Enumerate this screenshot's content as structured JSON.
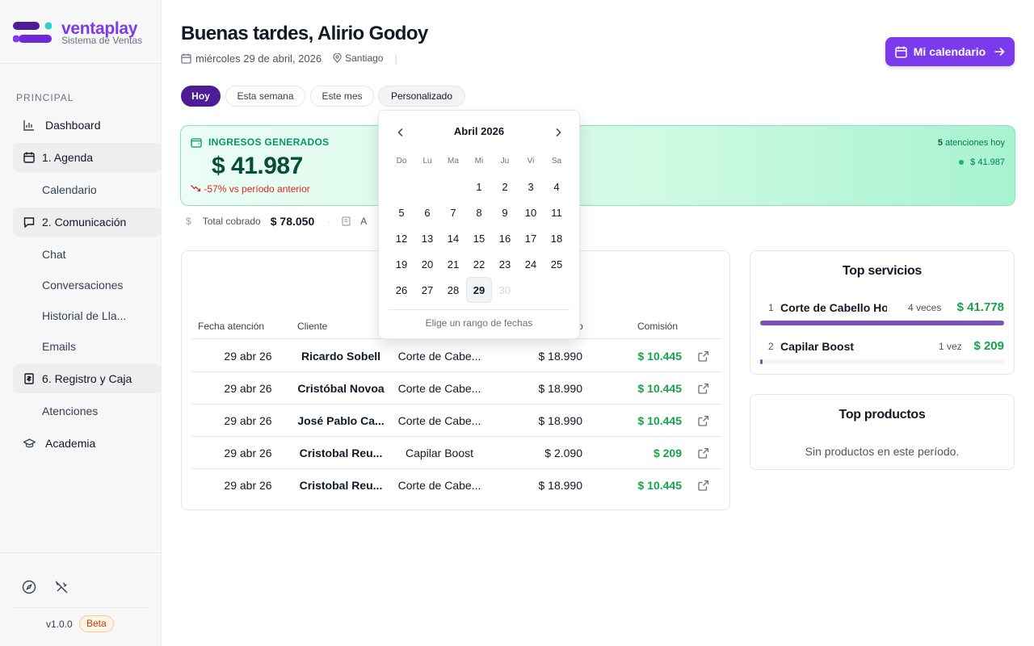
{
  "brand": {
    "name": "ventaplay",
    "subtitle": "Sistema de Ventas"
  },
  "sidebar": {
    "section": "PRINCIPAL",
    "items": [
      {
        "label": "Dashboard",
        "icon": "bar-chart-icon"
      },
      {
        "label": "1. Agenda",
        "icon": "calendar-icon"
      },
      {
        "label": "Calendario"
      },
      {
        "label": "2. Comunicación",
        "icon": "chat-icon"
      },
      {
        "label": "Chat"
      },
      {
        "label": "Conversaciones"
      },
      {
        "label": "Historial de Lla..."
      },
      {
        "label": "Emails"
      },
      {
        "label": "6. Registro y Caja",
        "icon": "receipt-icon"
      },
      {
        "label": "Atenciones"
      },
      {
        "label": "Academia",
        "icon": "graduation-cap-icon"
      }
    ],
    "version": "v1.0.0",
    "badge": "Beta"
  },
  "header": {
    "greeting": "Buenas tardes, Alirio Godoy",
    "date": "miércoles 29 de abril, 2026",
    "location": "Santiago",
    "calendar_button": "Mi calendario"
  },
  "filters": {
    "today": "Hoy",
    "week": "Esta semana",
    "month": "Este mes",
    "custom": "Personalizado"
  },
  "kpi": {
    "title": "INGRESOS GENERADOS",
    "value": "$ 41.987",
    "delta": "-57% vs período anterior",
    "attentions_count": "5",
    "attentions_label": "atenciones hoy",
    "attentions_amount": "$ 41.987"
  },
  "summary": {
    "collected_label": "Total cobrado",
    "collected_value": "$ 78.050",
    "second_label": "A"
  },
  "table": {
    "headers": {
      "date": "Fecha atención",
      "client": "Cliente",
      "price": "o",
      "commission": "Comisión"
    },
    "rows": [
      {
        "date": "29 abr 26",
        "client": "Ricardo Sobell",
        "service": "Corte de Cabe...",
        "price": "$ 18.990",
        "commission": "$ 10.445"
      },
      {
        "date": "29 abr 26",
        "client": "Cristóbal Novoa",
        "service": "Corte de Cabe...",
        "price": "$ 18.990",
        "commission": "$ 10.445"
      },
      {
        "date": "29 abr 26",
        "client": "José Pablo Ca...",
        "service": "Corte de Cabe...",
        "price": "$ 18.990",
        "commission": "$ 10.445"
      },
      {
        "date": "29 abr 26",
        "client": "Cristobal Reu...",
        "service": "Capilar Boost",
        "price": "$ 2.090",
        "commission": "$ 209"
      },
      {
        "date": "29 abr 26",
        "client": "Cristobal Reu...",
        "service": "Corte de Cabe...",
        "price": "$ 18.990",
        "commission": "$ 10.445"
      }
    ]
  },
  "top_services": {
    "title": "Top servicios",
    "items": [
      {
        "rank": "1",
        "name": "Corte de Cabello Ho...",
        "count": "4 veces",
        "amount": "$ 41.778",
        "share": 1.0
      },
      {
        "rank": "2",
        "name": "Capilar Boost",
        "count": "1 vez",
        "amount": "$ 209",
        "share": 0.01
      }
    ]
  },
  "top_products": {
    "title": "Top productos",
    "empty": "Sin productos en este período."
  },
  "datepicker": {
    "month": "Abril 2026",
    "weekdays": [
      "Do",
      "Lu",
      "Ma",
      "Mi",
      "Ju",
      "Vi",
      "Sa"
    ],
    "weeks": [
      [
        "",
        "",
        "",
        "1",
        "2",
        "3",
        "4"
      ],
      [
        "5",
        "6",
        "7",
        "8",
        "9",
        "10",
        "11"
      ],
      [
        "12",
        "13",
        "14",
        "15",
        "16",
        "17",
        "18"
      ],
      [
        "19",
        "20",
        "21",
        "22",
        "23",
        "24",
        "25"
      ],
      [
        "26",
        "27",
        "28",
        "29",
        "30",
        "",
        ""
      ]
    ],
    "selected": "29",
    "disabled": [
      "30"
    ],
    "hint": "Elige un rango de fechas"
  },
  "colors": {
    "accent": "#7c3aed",
    "accent_dark": "#4c1d95",
    "success": "#16a34a",
    "danger": "#dc2626"
  }
}
